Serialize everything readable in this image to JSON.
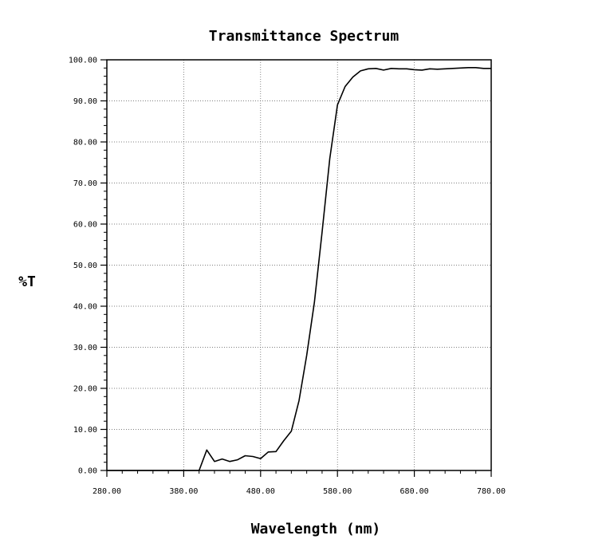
{
  "chart_data": {
    "type": "line",
    "title": "Transmittance Spectrum",
    "xlabel": "Wavelength (nm)",
    "ylabel": "%T",
    "xlim": [
      280,
      780
    ],
    "ylim": [
      0,
      100
    ],
    "grid": true,
    "x_ticks": [
      280,
      380,
      480,
      580,
      680,
      780
    ],
    "x_tick_labels": [
      "280.00",
      "380.00",
      "480.00",
      "580.00",
      "680.00",
      "780.00"
    ],
    "y_ticks": [
      0,
      10,
      20,
      30,
      40,
      50,
      60,
      70,
      80,
      90,
      100
    ],
    "y_tick_labels": [
      "0.00",
      "10.00",
      "20.00",
      "30.00",
      "40.00",
      "50.00",
      "60.00",
      "70.00",
      "80.00",
      "90.00",
      "100.00"
    ],
    "series": [
      {
        "color": "#000000",
        "x": [
          280,
          300,
          320,
          340,
          360,
          380,
          390,
          400,
          410,
          420,
          430,
          440,
          450,
          460,
          470,
          480,
          490,
          500,
          510,
          520,
          530,
          540,
          550,
          560,
          570,
          580,
          590,
          600,
          610,
          620,
          630,
          640,
          650,
          660,
          670,
          680,
          690,
          700,
          710,
          720,
          730,
          740,
          750,
          760,
          770,
          780
        ],
        "y": [
          0,
          0,
          0,
          0,
          0,
          0,
          0,
          0,
          5,
          2.2,
          2.8,
          2.2,
          2.6,
          3.6,
          3.4,
          2.9,
          4.5,
          4.6,
          7.2,
          9.6,
          17,
          28,
          41,
          58,
          76,
          89,
          93.5,
          95.8,
          97.3,
          97.8,
          97.9,
          97.5,
          97.9,
          97.8,
          97.8,
          97.6,
          97.5,
          97.8,
          97.7,
          97.8,
          97.9,
          98,
          98.1,
          98.1,
          97.9,
          97.9
        ]
      }
    ]
  }
}
